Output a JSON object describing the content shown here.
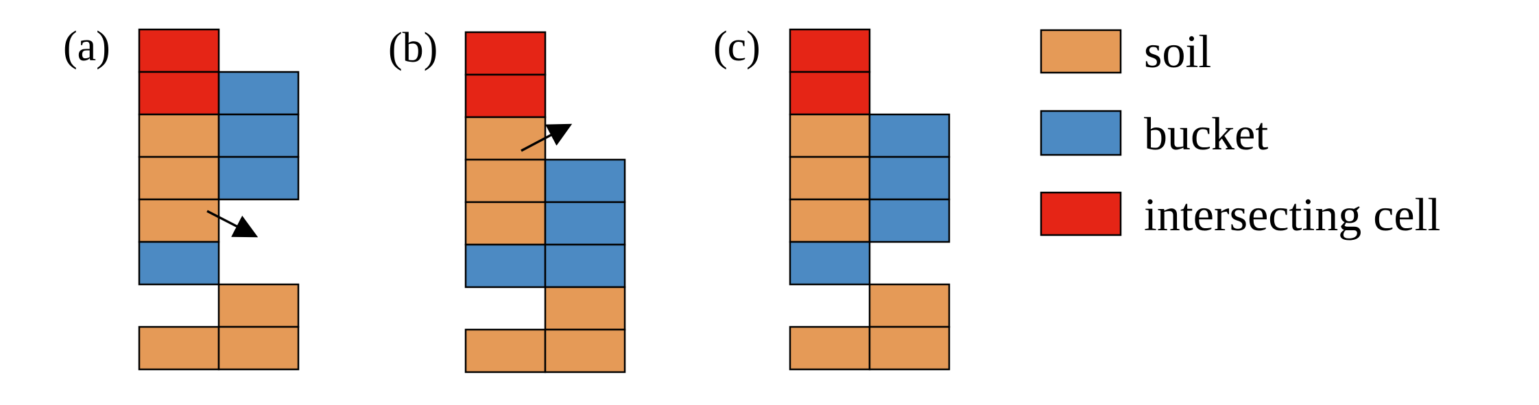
{
  "colors": {
    "soil": "#E59A57",
    "bucket": "#4C8AC3",
    "intersecting": "#E52516",
    "outline": "#000000"
  },
  "legend": [
    {
      "key": "soil",
      "label": "soil"
    },
    {
      "key": "bucket",
      "label": "bucket"
    },
    {
      "key": "intersecting",
      "label": "intersecting cell"
    }
  ],
  "panels": [
    {
      "label": "(a)",
      "cells": [
        {
          "col": 0,
          "row": 0,
          "type": "intersecting"
        },
        {
          "col": 0,
          "row": 1,
          "type": "intersecting"
        },
        {
          "col": 1,
          "row": 1,
          "type": "bucket"
        },
        {
          "col": 0,
          "row": 2,
          "type": "soil"
        },
        {
          "col": 1,
          "row": 2,
          "type": "bucket"
        },
        {
          "col": 0,
          "row": 3,
          "type": "soil"
        },
        {
          "col": 1,
          "row": 3,
          "type": "bucket"
        },
        {
          "col": 0,
          "row": 4,
          "type": "soil"
        },
        {
          "col": 0,
          "row": 5,
          "type": "bucket"
        },
        {
          "col": 1,
          "row": 6,
          "type": "soil"
        },
        {
          "col": 0,
          "row": 7,
          "type": "soil"
        },
        {
          "col": 1,
          "row": 7,
          "type": "soil"
        }
      ],
      "arrow": "down-right"
    },
    {
      "label": "(b)",
      "cells": [
        {
          "col": 0,
          "row": 0,
          "type": "intersecting"
        },
        {
          "col": 0,
          "row": 1,
          "type": "intersecting"
        },
        {
          "col": 0,
          "row": 2,
          "type": "soil"
        },
        {
          "col": 0,
          "row": 3,
          "type": "soil"
        },
        {
          "col": 1,
          "row": 3,
          "type": "bucket"
        },
        {
          "col": 0,
          "row": 4,
          "type": "soil"
        },
        {
          "col": 1,
          "row": 4,
          "type": "bucket"
        },
        {
          "col": 0,
          "row": 5,
          "type": "bucket"
        },
        {
          "col": 1,
          "row": 5,
          "type": "bucket"
        },
        {
          "col": 1,
          "row": 6,
          "type": "soil"
        },
        {
          "col": 0,
          "row": 7,
          "type": "soil"
        },
        {
          "col": 1,
          "row": 7,
          "type": "soil"
        }
      ],
      "arrow": "up-right"
    },
    {
      "label": "(c)",
      "cells": [
        {
          "col": 0,
          "row": 0,
          "type": "intersecting"
        },
        {
          "col": 0,
          "row": 1,
          "type": "intersecting"
        },
        {
          "col": 0,
          "row": 2,
          "type": "soil"
        },
        {
          "col": 1,
          "row": 2,
          "type": "bucket"
        },
        {
          "col": 0,
          "row": 3,
          "type": "soil"
        },
        {
          "col": 1,
          "row": 3,
          "type": "bucket"
        },
        {
          "col": 0,
          "row": 4,
          "type": "soil"
        },
        {
          "col": 1,
          "row": 4,
          "type": "bucket"
        },
        {
          "col": 0,
          "row": 5,
          "type": "bucket"
        },
        {
          "col": 1,
          "row": 6,
          "type": "soil"
        },
        {
          "col": 0,
          "row": 7,
          "type": "soil"
        },
        {
          "col": 1,
          "row": 7,
          "type": "soil"
        }
      ],
      "arrow": ""
    }
  ]
}
